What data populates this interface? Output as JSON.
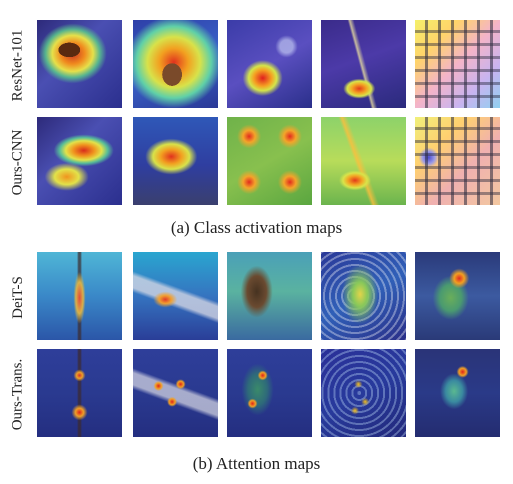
{
  "section_a": {
    "caption": "(a) Class activation maps",
    "rows": [
      {
        "label": "ResNet-101",
        "tiles": [
          "h-bird-a",
          "h-bird-b",
          "h-glass-a",
          "h-stir-a",
          "h-key-a"
        ]
      },
      {
        "label": "Ours-CNN",
        "tiles": [
          "h-bird-c",
          "h-bird-d",
          "h-glass-b",
          "h-stir-b",
          "h-key-b"
        ]
      }
    ]
  },
  "section_b": {
    "caption": "(b) Attention maps",
    "rows": [
      {
        "label": "DeiT-S",
        "tiles": [
          "h-tower-a",
          "h-plane-a",
          "h-person-a",
          "h-butterfly-a",
          "h-sit-a"
        ]
      },
      {
        "label": "Ours-Trans.",
        "tiles": [
          "h-tower-b",
          "h-plane-b",
          "h-person-b",
          "h-butterfly-b",
          "h-sit-b"
        ]
      }
    ]
  }
}
